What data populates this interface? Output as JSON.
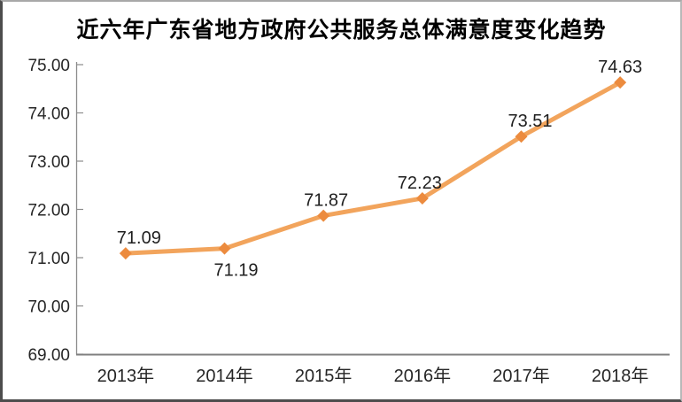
{
  "chart_data": {
    "type": "line",
    "title": "近六年广东省地方政府公共服务总体满意度变化趋势",
    "categories": [
      "2013年",
      "2014年",
      "2015年",
      "2016年",
      "2017年",
      "2018年"
    ],
    "values": [
      71.09,
      71.19,
      71.87,
      72.23,
      73.51,
      74.63
    ],
    "data_labels": [
      "71.09",
      "71.19",
      "71.87",
      "72.23",
      "73.51",
      "74.63"
    ],
    "label_positions": [
      "above",
      "below",
      "above",
      "above",
      "above",
      "above"
    ],
    "label_dx": [
      15,
      13,
      3,
      -3,
      10,
      0
    ],
    "y_tick_labels": [
      "75.00",
      "74.00",
      "73.00",
      "72.00",
      "71.00",
      "70.00",
      "69.00"
    ],
    "ylim": [
      69,
      75
    ],
    "xlabel": "",
    "ylabel": "",
    "grid": false,
    "legend_position": "none",
    "marker_shape": "diamond",
    "colors": {
      "line": "#F2A45C",
      "marker": "#EC8B3E",
      "y_axis": "#8C8C8C",
      "x_axis": "#7F7F7F",
      "tick": "#8C8C8C",
      "axis_text": "#262626",
      "data_label_text": "#1f1f1f",
      "title_text": "#000000"
    }
  }
}
